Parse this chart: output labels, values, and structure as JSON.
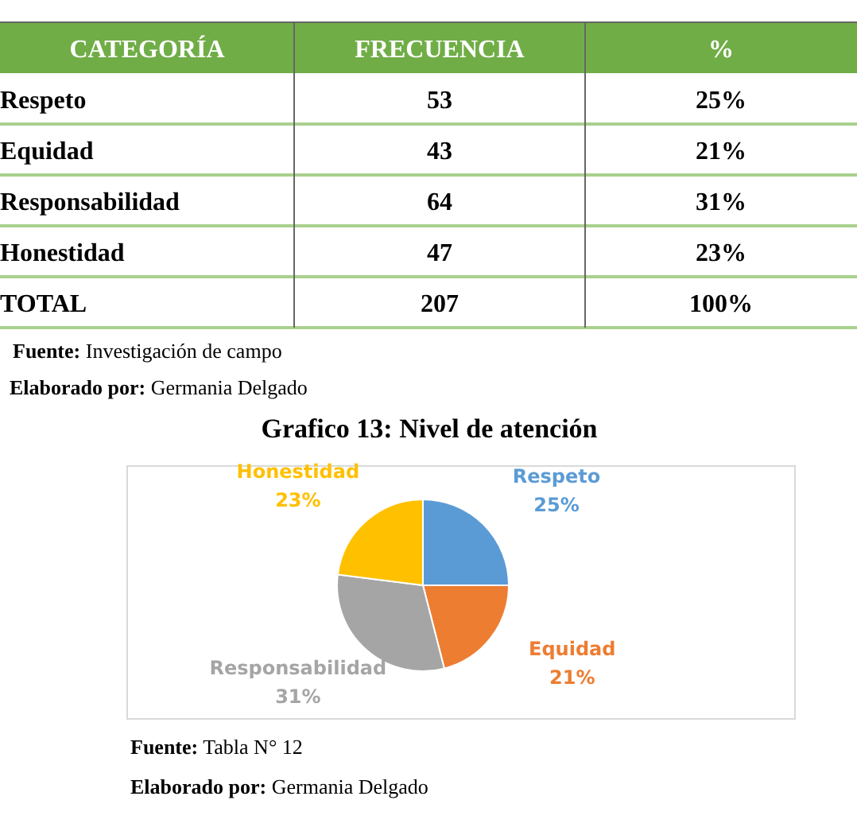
{
  "chart_data": {
    "type": "pie",
    "title": "Grafico 13: Nivel de atención",
    "categories": [
      "Respeto",
      "Equidad",
      "Responsabilidad",
      "Honestidad"
    ],
    "values": [
      25,
      21,
      31,
      23
    ],
    "value_labels": [
      "25%",
      "21%",
      "31%",
      "23%"
    ],
    "colors": [
      "#5b9bd5",
      "#ed7d31",
      "#a5a5a5",
      "#ffc000"
    ],
    "annotations": [
      "CATEGORÍA",
      "FRECUENCIA",
      "%",
      "53",
      "43",
      "64",
      "47",
      "TOTAL",
      "207",
      "100%",
      "Fuente: Investigación de campo",
      "Elaborado por: Germania Delgado",
      "Fuente: Tabla N° 12",
      "Elaborado por: Germania Delgado"
    ]
  }
}
